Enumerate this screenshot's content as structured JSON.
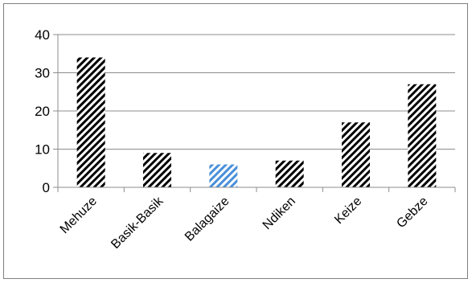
{
  "chart_data": {
    "type": "bar",
    "title": "",
    "xlabel": "",
    "ylabel": "",
    "categories": [
      "Mehuze",
      "Basik-Basik",
      "Balagaize",
      "Ndiken",
      "Keize",
      "Gebze"
    ],
    "values": [
      34,
      9,
      6,
      7,
      17,
      27
    ],
    "ylim": [
      0,
      40
    ],
    "yticks": [
      "0",
      "10",
      "20",
      "30",
      "40"
    ],
    "grid": true,
    "legend": "none",
    "colors": {
      "bar_pattern": "#000000",
      "highlight_pattern": "#4a90d9",
      "highlight_index": 2,
      "gridline": "#8c8c8c"
    }
  }
}
